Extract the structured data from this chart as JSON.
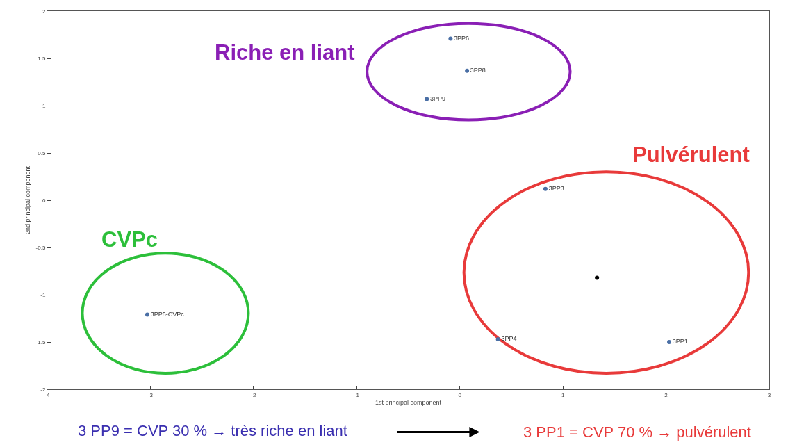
{
  "chart_data": {
    "type": "scatter",
    "xlabel": "1st principal component",
    "ylabel": "2nd principal component",
    "xlim": [
      -4,
      3
    ],
    "xticks": [
      -4,
      -3,
      -2,
      -1,
      0,
      1,
      2,
      3
    ],
    "ylim": [
      -2,
      2
    ],
    "yticks": [
      -2,
      -1.5,
      -1,
      -0.5,
      0,
      0.5,
      1,
      1.5,
      2
    ],
    "legend": false,
    "marker": "circle",
    "series": [
      {
        "name": "3PP6",
        "color": "#4a6fa5",
        "x": [
          -0.09
        ],
        "values": [
          1.71
        ]
      },
      {
        "name": "3PP8",
        "color": "#4a6fa5",
        "x": [
          0.07
        ],
        "values": [
          1.37
        ]
      },
      {
        "name": "3PP9",
        "color": "#4a6fa5",
        "x": [
          -0.32
        ],
        "values": [
          1.07
        ]
      },
      {
        "name": "3PP3",
        "color": "#4a6fa5",
        "x": [
          0.83
        ],
        "values": [
          0.12
        ]
      },
      {
        "color": "#000000",
        "x": [
          1.33
        ],
        "values": [
          -0.82
        ]
      },
      {
        "name": "3PP4",
        "color": "#4a6fa5",
        "x": [
          0.37
        ],
        "values": [
          -1.47
        ]
      },
      {
        "name": "3PP1",
        "color": "#4a6fa5",
        "x": [
          2.03
        ],
        "values": [
          -1.5
        ]
      },
      {
        "name": "3PP5-CVPc",
        "color": "#4a6fa5",
        "x": [
          -3.03
        ],
        "values": [
          -1.21
        ]
      }
    ],
    "annotations": [
      "Riche en liant",
      "Pulvérulent",
      "CVPc",
      "3 PP9 = CVP 30 % → très riche en liant",
      "3 PP1 = CVP 70 % → pulvérulent"
    ]
  }
}
